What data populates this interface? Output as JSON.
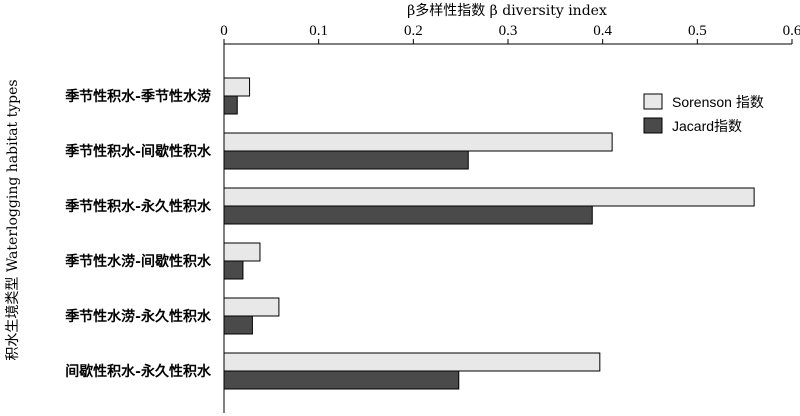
{
  "chart_data": {
    "type": "bar",
    "orientation": "horizontal",
    "title": "",
    "x_axis_title": "β多样性指数  β diversity index",
    "y_axis_title": "积水生境类型 Waterlogging habitat types",
    "xlim": [
      0,
      0.6
    ],
    "x_ticks": [
      "0",
      "0.1",
      "0.2",
      "0.3",
      "0.4",
      "0.5",
      "0.6"
    ],
    "x_tick_values": [
      0,
      0.1,
      0.2,
      0.3,
      0.4,
      0.5,
      0.6
    ],
    "x_axis_position": "top",
    "grid": false,
    "legend_position": "top-right",
    "categories": [
      "季节性积水-季节性水涝",
      "季节性积水-间歇性积水",
      "季节性积水-永久性积水",
      "季节性水涝-间歇性积水",
      "季节性水涝-永久性积水",
      "间歇性积水-永久性积水"
    ],
    "series": [
      {
        "name": "Sorenson 指数",
        "color": "#e8e8e8",
        "values": [
          0.027,
          0.41,
          0.56,
          0.038,
          0.058,
          0.397
        ]
      },
      {
        "name": "Jacard指数",
        "color": "#4a4a4a",
        "values": [
          0.014,
          0.258,
          0.389,
          0.02,
          0.03,
          0.248
        ]
      }
    ]
  }
}
